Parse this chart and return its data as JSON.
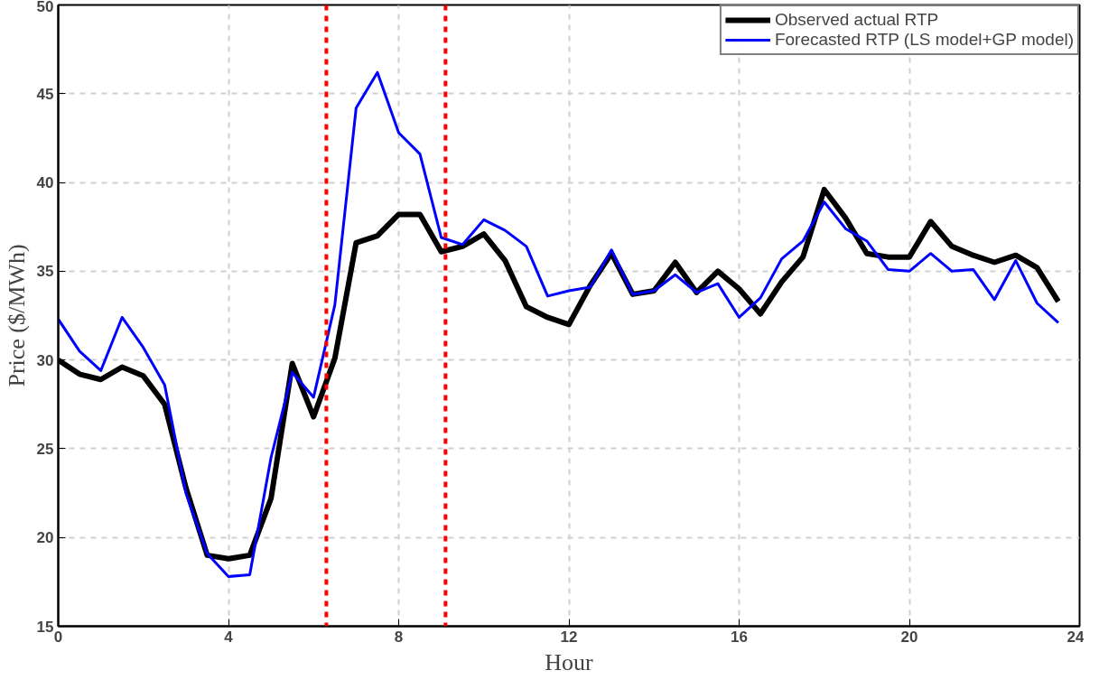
{
  "chart_data": {
    "type": "line",
    "xlabel": "Hour",
    "ylabel": "Price ($/MWh)",
    "x": [
      0,
      0.5,
      1,
      1.5,
      2,
      2.5,
      3,
      3.5,
      4,
      4.5,
      5,
      5.5,
      6,
      6.5,
      7,
      7.5,
      8,
      8.5,
      9,
      9.5,
      10,
      10.5,
      11,
      11.5,
      12,
      12.5,
      13,
      13.5,
      14,
      14.5,
      15,
      15.5,
      16,
      16.5,
      17,
      17.5,
      18,
      18.5,
      19,
      19.5,
      20,
      20.5,
      21,
      21.5,
      22,
      22.5,
      23,
      23.5
    ],
    "series": [
      {
        "name": "Observed actual RTP",
        "color": "#000000",
        "values": [
          30.0,
          29.2,
          28.9,
          29.6,
          29.1,
          27.5,
          22.8,
          19.0,
          18.8,
          19.0,
          22.2,
          29.8,
          26.8,
          30.1,
          36.6,
          37.0,
          38.2,
          38.2,
          36.1,
          36.4,
          37.1,
          35.6,
          33.0,
          32.4,
          32.0,
          34.2,
          36.0,
          33.7,
          33.9,
          35.5,
          33.8,
          35.0,
          34.0,
          32.6,
          34.4,
          35.8,
          39.6,
          38.0,
          36.0,
          35.8,
          35.8,
          37.8,
          36.4,
          35.9,
          35.5,
          35.9,
          35.2,
          33.3
        ]
      },
      {
        "name": "Forecasted RTP (LS model+GP model)",
        "color": "#0000ff",
        "values": [
          32.3,
          30.5,
          29.4,
          32.4,
          30.7,
          28.6,
          22.5,
          19.1,
          17.8,
          17.9,
          24.5,
          29.3,
          27.9,
          33.1,
          44.2,
          46.2,
          42.8,
          41.6,
          36.9,
          36.5,
          37.9,
          37.3,
          36.4,
          33.6,
          33.9,
          34.1,
          36.2,
          33.7,
          33.9,
          34.8,
          33.8,
          34.3,
          32.4,
          33.5,
          35.7,
          36.7,
          38.9,
          37.4,
          36.7,
          35.1,
          35.0,
          36.0,
          35.0,
          35.1,
          33.4,
          35.6,
          33.2,
          32.1
        ]
      }
    ],
    "xlim": [
      0,
      24
    ],
    "xticks": [
      0,
      4,
      8,
      12,
      16,
      20,
      24
    ],
    "ylim": [
      15,
      50
    ],
    "yticks": [
      15,
      20,
      25,
      30,
      35,
      40,
      45,
      50
    ],
    "ref_lines": [
      {
        "axis": "x",
        "value": 6.3,
        "color": "#ff0000",
        "line_style": "dashed"
      },
      {
        "axis": "x",
        "value": 9.1,
        "color": "#ff0000",
        "line_style": "dashed"
      }
    ],
    "grid": true,
    "legend": "top right",
    "line_style": "solid"
  }
}
